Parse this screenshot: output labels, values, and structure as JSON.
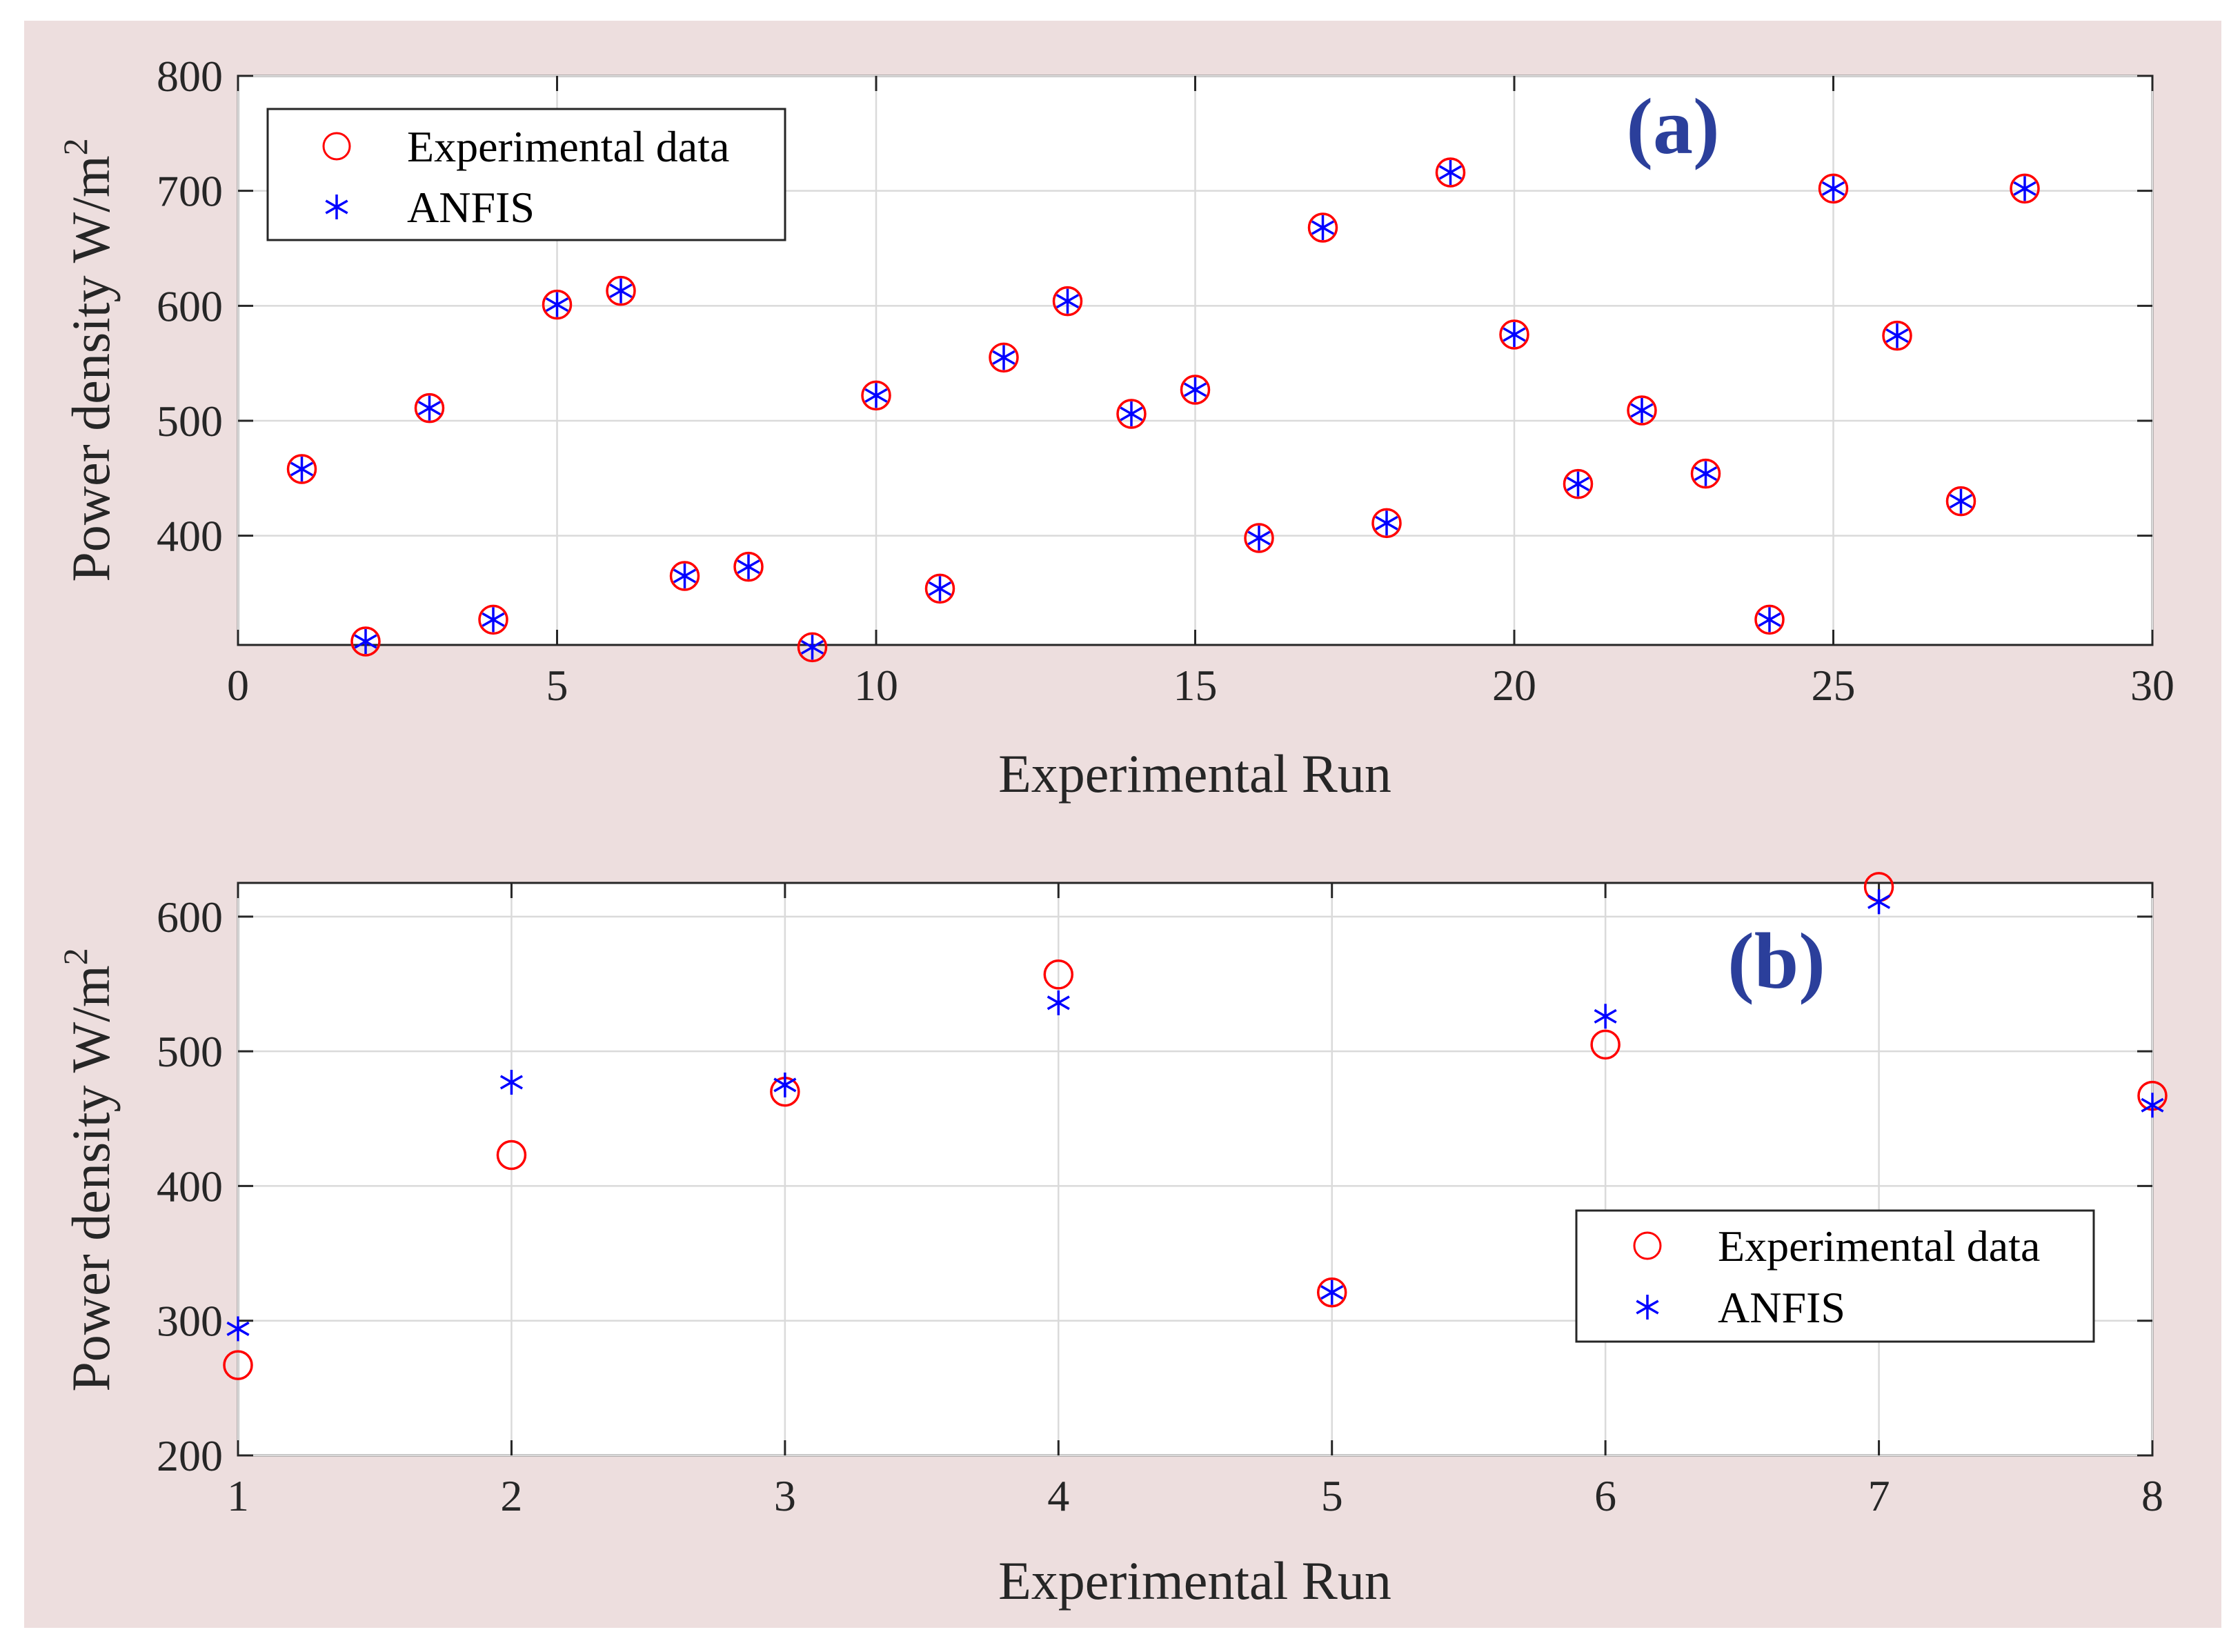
{
  "colors": {
    "figure_background": "#eddede",
    "experimental": "#ff0000",
    "anfis": "#0000ff",
    "panel_tag": "#2b3f9b"
  },
  "chart_data": [
    {
      "id": "a",
      "type": "scatter",
      "panel_tag": "(a)",
      "xlabel": "Experimental Run",
      "ylabel": "Power density W/m",
      "ylabel_superscript": "2",
      "xlim": [
        0,
        30
      ],
      "ylim": [
        305,
        800
      ],
      "xticks": [
        "0",
        "5",
        "10",
        "15",
        "20",
        "25",
        "30"
      ],
      "yticks": [
        "400",
        "500",
        "600",
        "700",
        "800"
      ],
      "grid": true,
      "legend_position": "top-left",
      "legend": [
        {
          "label": "Experimental data",
          "marker": "circle",
          "icon": "circle-marker-icon"
        },
        {
          "label": "ANFIS",
          "marker": "asterisk",
          "icon": "asterisk-marker-icon"
        }
      ],
      "x": [
        1,
        2,
        3,
        4,
        5,
        6,
        7,
        8,
        9,
        10,
        11,
        12,
        13,
        14,
        15,
        16,
        17,
        18,
        19,
        20,
        21,
        22,
        23,
        24,
        25,
        26,
        27,
        28
      ],
      "series": [
        {
          "name": "Experimental data",
          "marker": "circle",
          "values": [
            458,
            308,
            511,
            327,
            601,
            613,
            365,
            373,
            303,
            522,
            354,
            555,
            604,
            506,
            527,
            398,
            668,
            411,
            716,
            575,
            445,
            509,
            454,
            327,
            702,
            574,
            430,
            702
          ]
        },
        {
          "name": "ANFIS",
          "marker": "asterisk",
          "values": [
            458,
            308,
            511,
            327,
            601,
            613,
            365,
            373,
            303,
            522,
            354,
            555,
            604,
            506,
            527,
            398,
            668,
            411,
            716,
            575,
            445,
            509,
            454,
            327,
            702,
            574,
            430,
            702
          ]
        }
      ]
    },
    {
      "id": "b",
      "type": "scatter",
      "panel_tag": "(b)",
      "xlabel": "Experimental Run",
      "ylabel": "Power density W/m",
      "ylabel_superscript": "2",
      "xlim": [
        1,
        8
      ],
      "ylim": [
        200,
        625
      ],
      "xticks": [
        "1",
        "2",
        "3",
        "4",
        "5",
        "6",
        "7",
        "8"
      ],
      "yticks": [
        "200",
        "300",
        "400",
        "500",
        "600"
      ],
      "grid": true,
      "legend_position": "bottom-right",
      "legend": [
        {
          "label": "Experimental data",
          "marker": "circle",
          "icon": "circle-marker-icon"
        },
        {
          "label": "ANFIS",
          "marker": "asterisk",
          "icon": "asterisk-marker-icon"
        }
      ],
      "x": [
        1,
        2,
        3,
        4,
        5,
        6,
        7,
        8
      ],
      "series": [
        {
          "name": "Experimental data",
          "marker": "circle",
          "values": [
            267,
            423,
            470,
            557,
            321,
            505,
            622,
            467
          ]
        },
        {
          "name": "ANFIS",
          "marker": "asterisk",
          "values": [
            294,
            477,
            475,
            536,
            321,
            526,
            611,
            460
          ]
        }
      ]
    }
  ]
}
